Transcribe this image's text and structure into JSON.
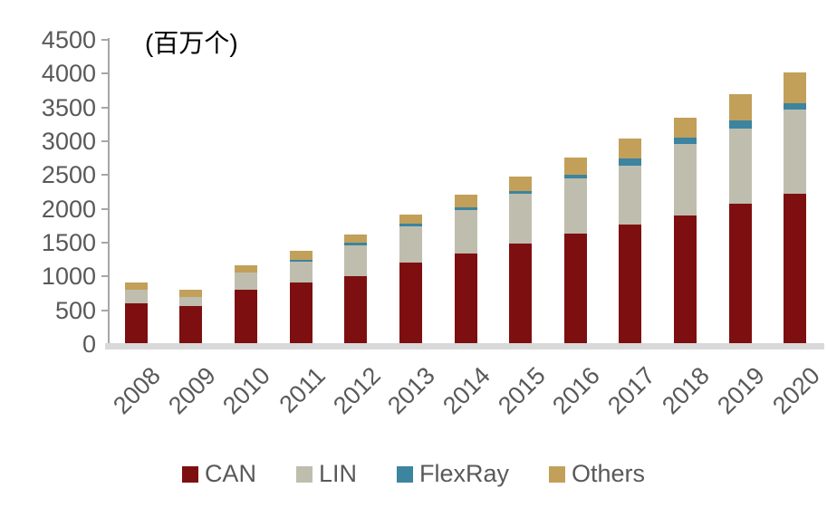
{
  "chart_data": {
    "type": "bar",
    "stacked": true,
    "title": "(百万个)",
    "categories": [
      "2008",
      "2009",
      "2010",
      "2011",
      "2012",
      "2013",
      "2014",
      "2015",
      "2016",
      "2017",
      "2018",
      "2019",
      "2020"
    ],
    "series": [
      {
        "name": "CAN",
        "color": "#7e0f10",
        "values": [
          600,
          560,
          805,
          905,
          1010,
          1200,
          1345,
          1480,
          1640,
          1770,
          1900,
          2075,
          2220
        ]
      },
      {
        "name": "LIN",
        "color": "#bfbdad",
        "values": [
          200,
          140,
          255,
          310,
          445,
          545,
          640,
          745,
          810,
          865,
          1065,
          1115,
          1250
        ]
      },
      {
        "name": "FlexRay",
        "color": "#3c84a0",
        "values": [
          0,
          0,
          0,
          35,
          40,
          40,
          40,
          40,
          55,
          105,
          95,
          120,
          95
        ]
      },
      {
        "name": "Others",
        "color": "#c2a05a",
        "values": [
          115,
          110,
          110,
          135,
          120,
          135,
          185,
          215,
          250,
          305,
          290,
          385,
          455
        ]
      }
    ],
    "totals": [
      915,
      810,
      1170,
      1385,
      1615,
      1920,
      2210,
      2480,
      2755,
      3045,
      3350,
      3695,
      4020
    ],
    "xlabel": "",
    "ylabel": "",
    "ylim": [
      0,
      4500
    ],
    "y_ticks": [
      0,
      500,
      1000,
      1500,
      2000,
      2500,
      3000,
      3500,
      4000,
      4500
    ],
    "grid": false,
    "legend_position": "bottom"
  },
  "colors": {
    "background": "#ffffff",
    "axis_line": "#a6a6a6",
    "baseline_band": "#d9d9d9",
    "tick_text": "#595959",
    "legend_text": "#595959",
    "title_text": "#000000"
  }
}
